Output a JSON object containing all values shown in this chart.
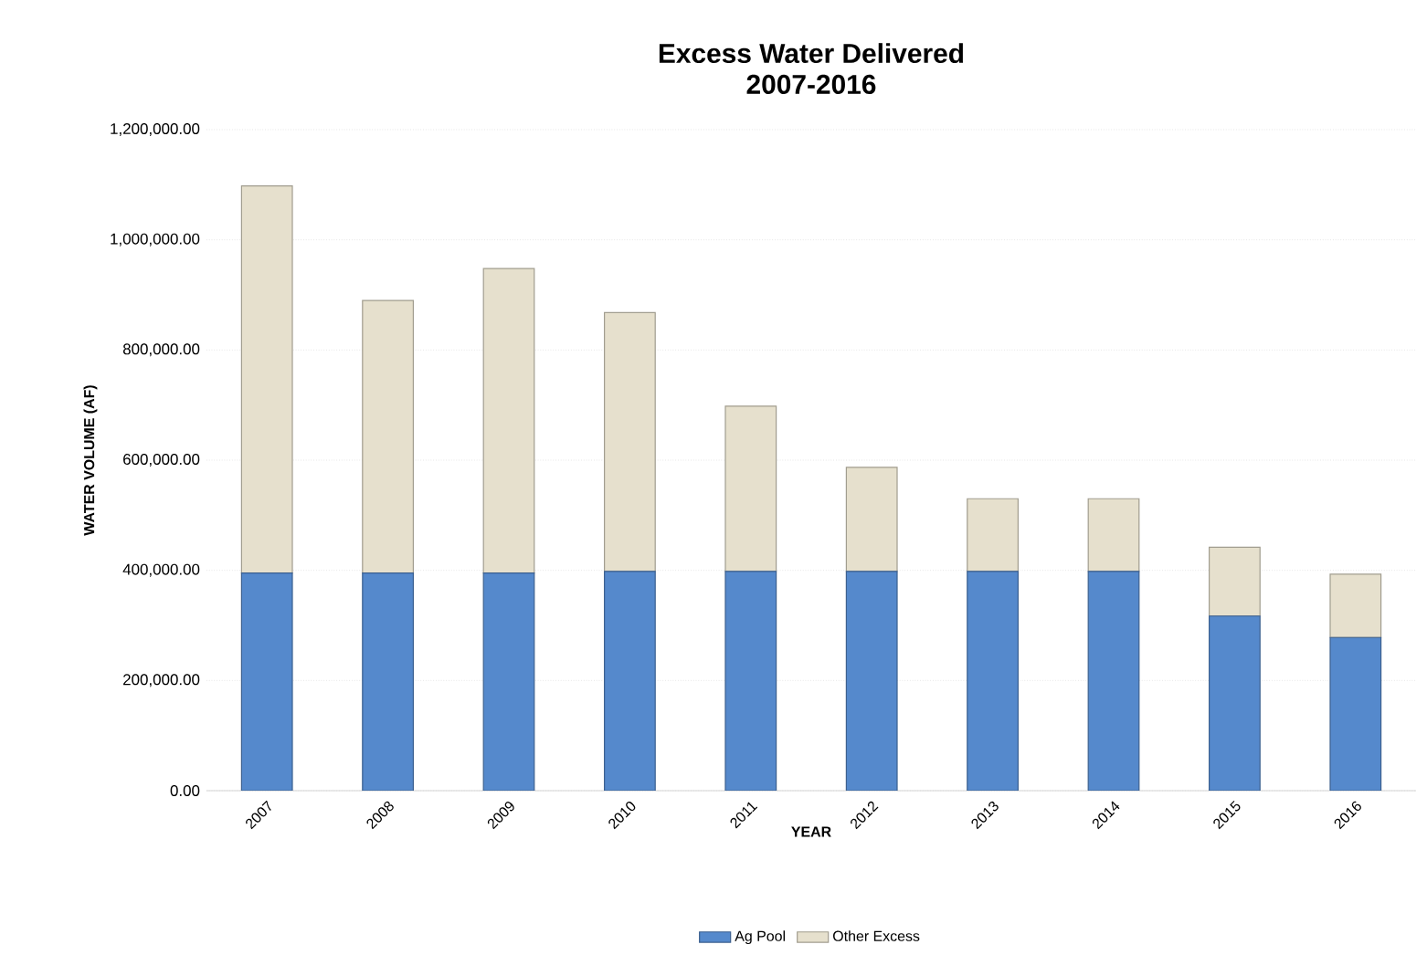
{
  "chart_data": {
    "type": "bar",
    "title": "Excess Water Delivered",
    "subtitle": "2007-2016",
    "xlabel": "YEAR",
    "ylabel": "WATER VOLUME (AF)",
    "categories": [
      "2007",
      "2008",
      "2009",
      "2010",
      "2011",
      "2012",
      "2013",
      "2014",
      "2015",
      "2016"
    ],
    "stacked": true,
    "series": [
      {
        "name": "Ag Pool",
        "color": "#5589cc",
        "values": [
          395000,
          395000,
          395000,
          398000,
          398000,
          398000,
          398000,
          398000,
          317000,
          278000
        ]
      },
      {
        "name": "Other Excess",
        "color": "#e6e0cd",
        "values": [
          703000,
          495000,
          553000,
          470000,
          300000,
          189000,
          132000,
          132000,
          125000,
          115000
        ]
      }
    ],
    "ylim": [
      0,
      1200000
    ],
    "yticks": [
      {
        "value": 0,
        "label": "0.00"
      },
      {
        "value": 200000,
        "label": "200,000.00"
      },
      {
        "value": 400000,
        "label": "400,000.00"
      },
      {
        "value": 600000,
        "label": "600,000.00"
      },
      {
        "value": 800000,
        "label": "800,000.00"
      },
      {
        "value": 1000000,
        "label": "1,000,000.00"
      },
      {
        "value": 1200000,
        "label": "1,200,000.00"
      }
    ],
    "grid": "y",
    "legend": "bottom"
  }
}
